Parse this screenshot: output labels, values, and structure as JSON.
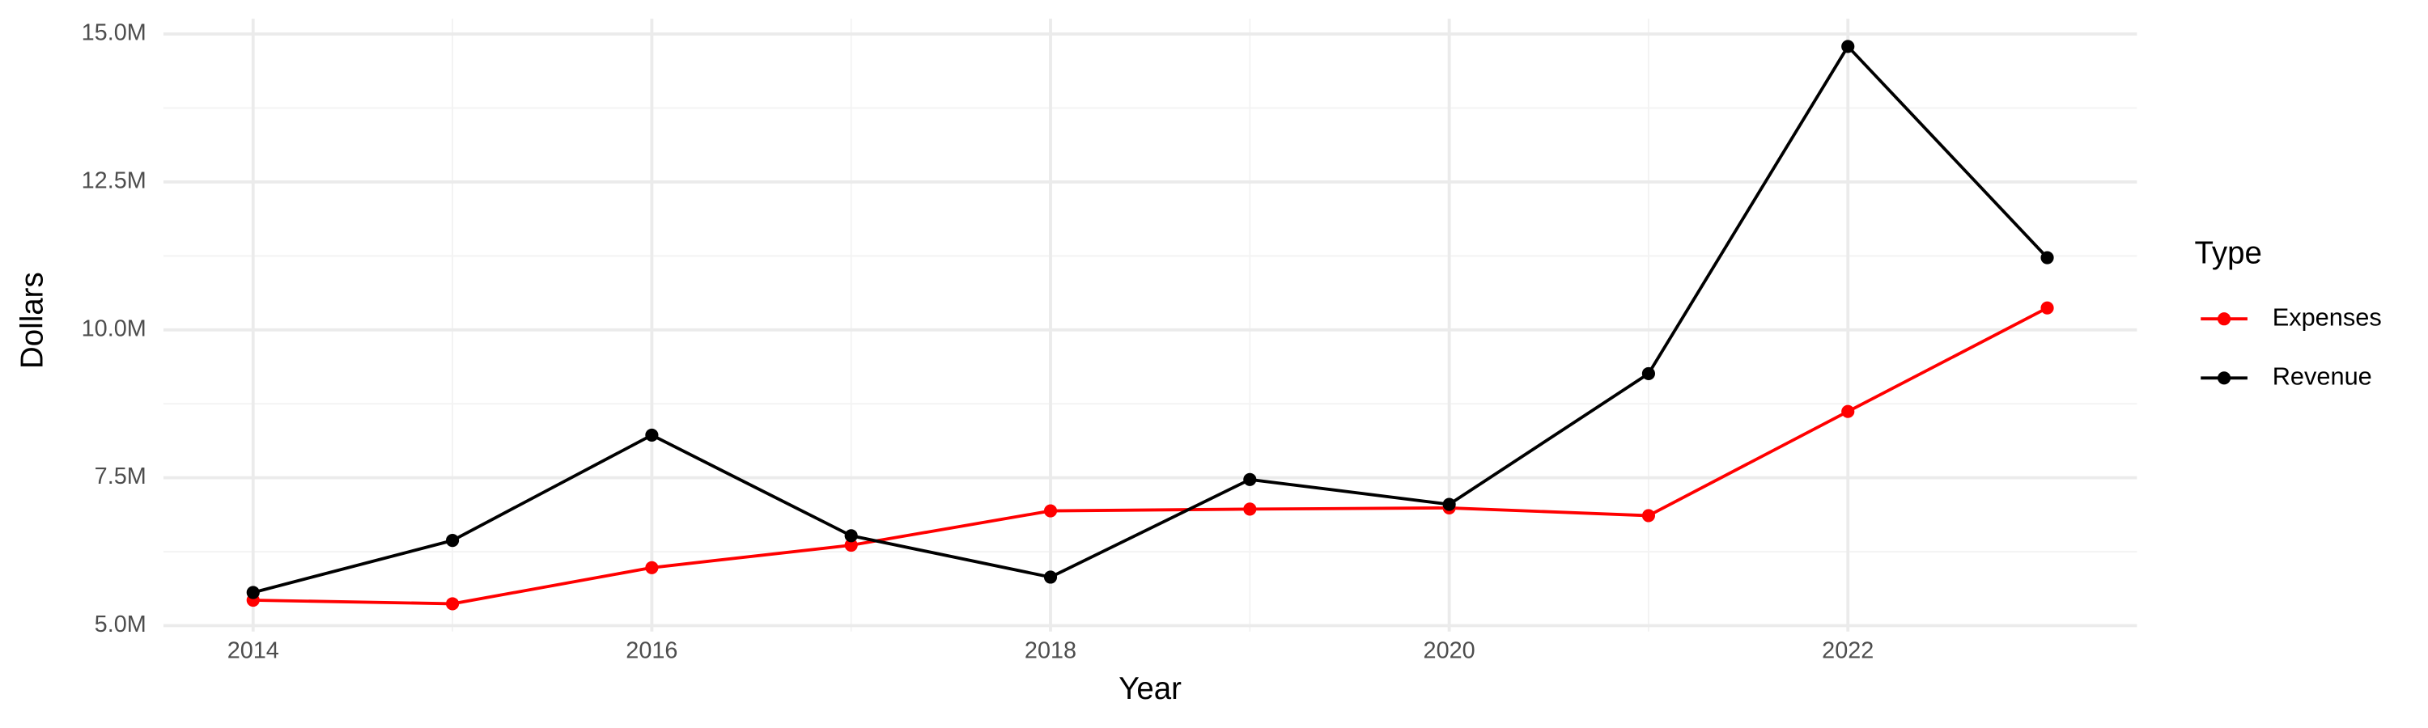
{
  "chart_data": {
    "type": "line",
    "x_label": "Year",
    "y_label": "Dollars",
    "x": [
      2014,
      2015,
      2016,
      2017,
      2018,
      2019,
      2020,
      2021,
      2022,
      2023
    ],
    "series": [
      {
        "name": "Expenses",
        "color": "#ff0000",
        "values": [
          5430000,
          5370000,
          5980000,
          6360000,
          6940000,
          6970000,
          6990000,
          6860000,
          8620000,
          10370000
        ]
      },
      {
        "name": "Revenue",
        "color": "#000000",
        "values": [
          5560000,
          6440000,
          8220000,
          6520000,
          5820000,
          7470000,
          7050000,
          9260000,
          14790000,
          11220000
        ]
      }
    ],
    "xlim": [
      2013.55,
      2023.45
    ],
    "ylim": [
      4900000,
      15260000
    ],
    "xticks": [
      2014,
      2016,
      2018,
      2020,
      2022
    ],
    "yticks": [
      {
        "value": 5000000,
        "label": "5.0M"
      },
      {
        "value": 7500000,
        "label": "7.5M"
      },
      {
        "value": 10000000,
        "label": "10.0M"
      },
      {
        "value": 12500000,
        "label": "12.5M"
      },
      {
        "value": 15000000,
        "label": "15.0M"
      }
    ],
    "grid": true,
    "legend_title": "Type",
    "legend_position": "right"
  }
}
